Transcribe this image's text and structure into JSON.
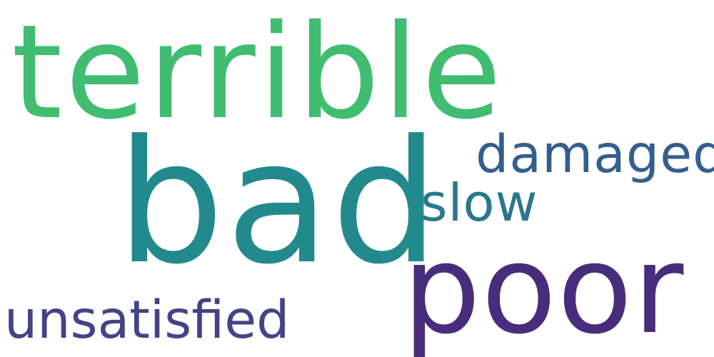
{
  "word_cloud": {
    "words": [
      {
        "text": "terrible",
        "color": "#41bd72"
      },
      {
        "text": "bad",
        "color": "#228a8d"
      },
      {
        "text": "damaged",
        "color": "#345f8d"
      },
      {
        "text": "slow",
        "color": "#2a778e"
      },
      {
        "text": "poor",
        "color": "#472d7b"
      },
      {
        "text": "unsatisfied",
        "color": "#414487"
      }
    ]
  }
}
